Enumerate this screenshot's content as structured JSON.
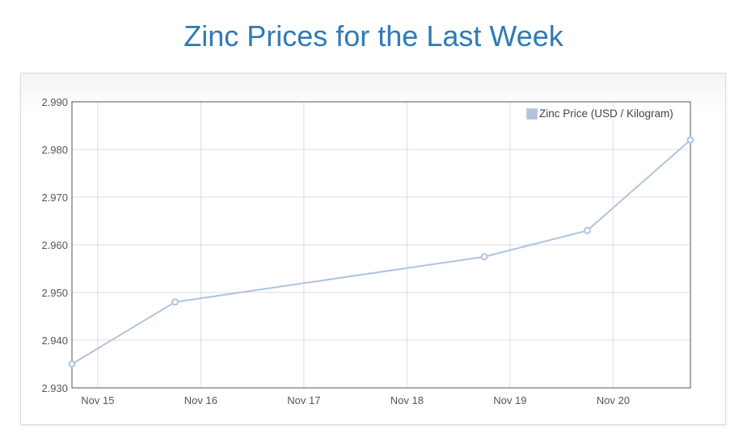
{
  "chart_data": {
    "type": "line",
    "title": "Zinc Prices for the Last Week",
    "xlabel": "",
    "ylabel": "",
    "ylim": [
      2.93,
      2.99
    ],
    "y_ticks": [
      "2.930",
      "2.940",
      "2.950",
      "2.960",
      "2.970",
      "2.980",
      "2.990"
    ],
    "x_ticks": [
      "Nov 15",
      "Nov 16",
      "Nov 17",
      "Nov 18",
      "Nov 19",
      "Nov 20"
    ],
    "xlim": [
      "Nov 14 18:00",
      "Nov 20 18:00"
    ],
    "grid": true,
    "legend_position": "top-right",
    "series": [
      {
        "name": "Zinc Price (USD / Kilogram)",
        "color": "#b0c4de",
        "x": [
          "Nov 14 18:00",
          "Nov 15 18:00",
          "Nov 18 18:00",
          "Nov 19 18:00",
          "Nov 20 18:00"
        ],
        "values": [
          2.935,
          2.948,
          2.9575,
          2.963,
          2.982
        ]
      }
    ]
  }
}
